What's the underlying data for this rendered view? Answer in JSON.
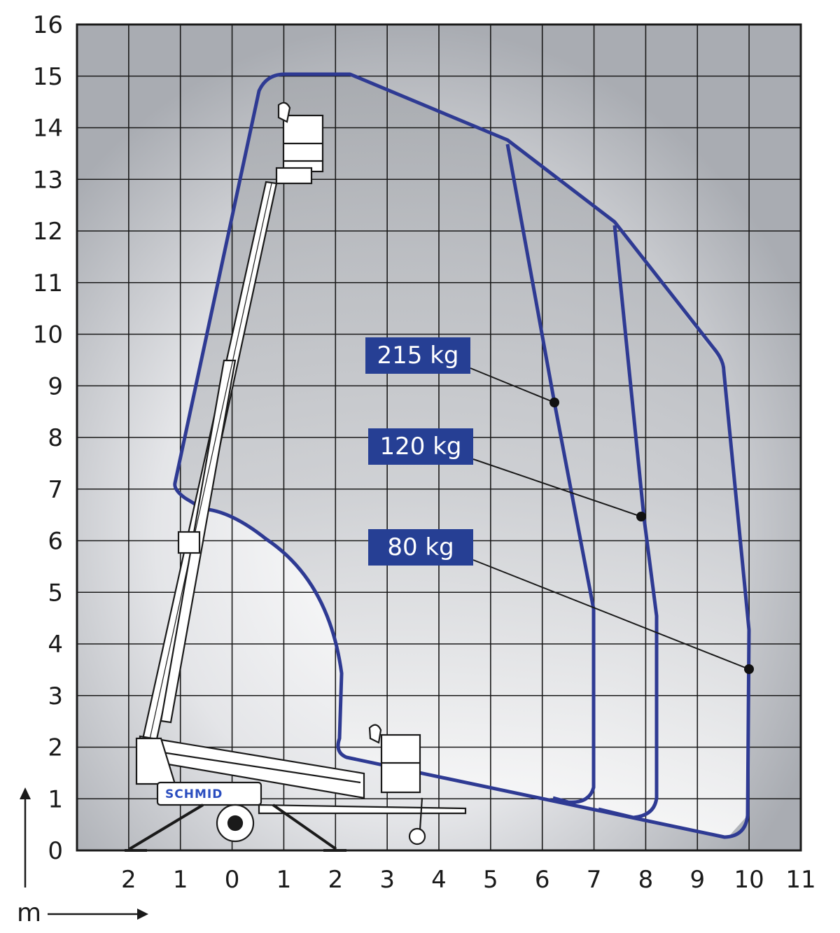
{
  "brand": "SCHMID",
  "axis_unit": "m",
  "colors": {
    "envelope": "#2e3a93",
    "label_bg": "#263f94",
    "label_text": "#ffffff",
    "grid": "#1a1a1a",
    "shade_dark": "#a9acb2",
    "shade_light": "#ffffff"
  },
  "chart_data": {
    "type": "diagram",
    "description_visible": false,
    "x_ticks": [
      "2",
      "1",
      "0",
      "1",
      "2",
      "3",
      "4",
      "5",
      "6",
      "7",
      "8",
      "9",
      "10",
      "11"
    ],
    "y_ticks": [
      "0",
      "1",
      "2",
      "3",
      "4",
      "5",
      "6",
      "7",
      "8",
      "9",
      "10",
      "11",
      "12",
      "13",
      "14",
      "15",
      "16"
    ],
    "xlim": [
      -3,
      11
    ],
    "ylim": [
      0,
      16
    ],
    "grid": true,
    "load_zones": [
      {
        "label": "215 kg",
        "max_outreach_m": 7.0
      },
      {
        "label": "120 kg",
        "max_outreach_m": 8.2
      },
      {
        "label": "80 kg",
        "max_outreach_m": 10.0
      }
    ]
  }
}
